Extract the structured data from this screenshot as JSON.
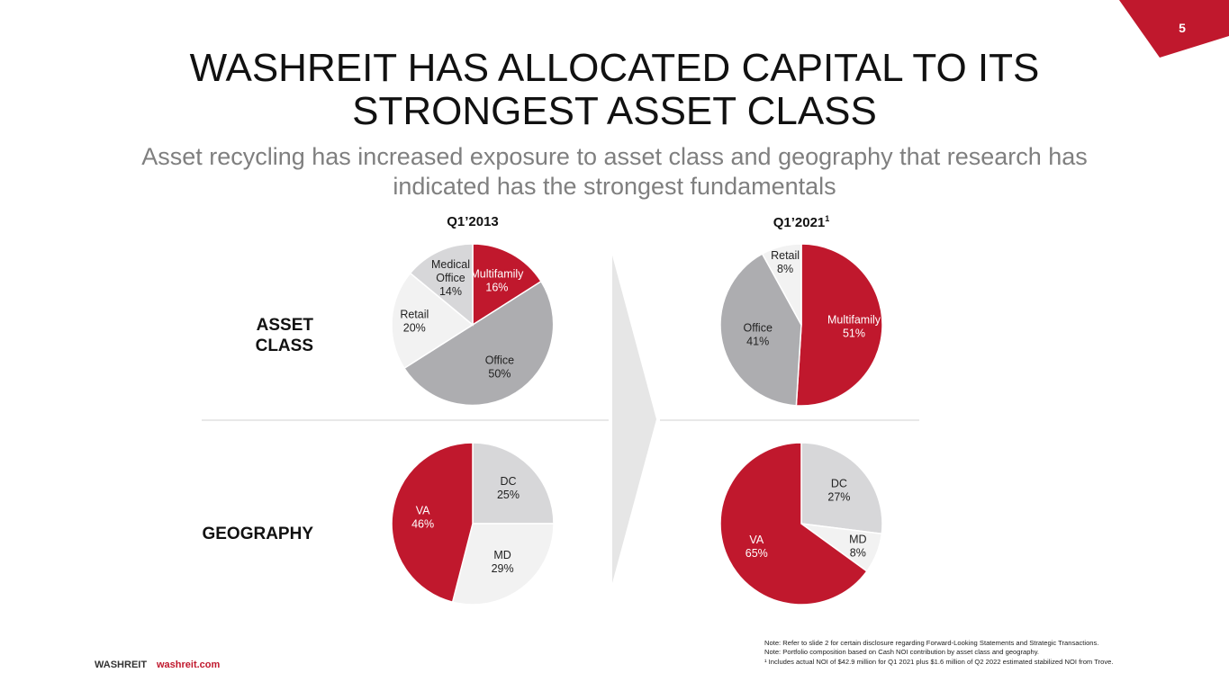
{
  "slide": {
    "page_number": "5",
    "title_line1": "WASHREIT HAS ALLOCATED CAPITAL TO ITS",
    "title_line2": "STRONGEST ASSET CLASS",
    "subtitle_line1": "Asset recycling has increased exposure to asset class and geography that research has",
    "subtitle_line2": "indicated has the strongest fundamentals",
    "row_labels": {
      "asset_line1": "ASSET",
      "asset_line2": "CLASS",
      "geography": "GEOGRAPHY"
    },
    "columns": {
      "left": "Q1’2013",
      "right": "Q1’2021",
      "right_footnote": "1"
    },
    "footer": {
      "brand": "WASHREIT",
      "url": "washreit.com"
    },
    "notes": [
      "Note: Refer to slide 2 for certain disclosure regarding Forward-Looking Statements and Strategic Transactions.",
      "Note: Portfolio composition based on Cash NOI contribution by asset class and geography.",
      "¹ Includes actual NOI of $42.9 million for Q1 2021 plus $1.6 million of Q2 2022 estimated stabilized NOI from Trove."
    ],
    "colors": {
      "brand_red": "#c0182d",
      "office_gray": "#adadb0",
      "light_gray": "#d7d7d9",
      "lightest_gray": "#f2f2f2",
      "arrow_gray": "#e6e6e6"
    }
  },
  "chart_data": [
    {
      "type": "pie",
      "title": "Q1’2013 Asset Class",
      "slices": [
        {
          "label_line1": "Multifamily",
          "label_line2": "",
          "pct_label": "16%",
          "value": 16,
          "color": "#c0182d",
          "text_color": "#ffffff"
        },
        {
          "label_line1": "Office",
          "label_line2": "",
          "pct_label": "50%",
          "value": 50,
          "color": "#adadb0",
          "text_color": "#222222"
        },
        {
          "label_line1": "Retail",
          "label_line2": "",
          "pct_label": "20%",
          "value": 20,
          "color": "#f2f2f2",
          "text_color": "#222222"
        },
        {
          "label_line1": "Medical",
          "label_line2": "Office",
          "pct_label": "14%",
          "value": 14,
          "color": "#d7d7d9",
          "text_color": "#222222"
        }
      ]
    },
    {
      "type": "pie",
      "title": "Q1’2021 Asset Class",
      "slices": [
        {
          "label_line1": "Multifamily",
          "label_line2": "",
          "pct_label": "51%",
          "value": 51,
          "color": "#c0182d",
          "text_color": "#ffffff"
        },
        {
          "label_line1": "Office",
          "label_line2": "",
          "pct_label": "41%",
          "value": 41,
          "color": "#adadb0",
          "text_color": "#222222"
        },
        {
          "label_line1": "Retail",
          "label_line2": "",
          "pct_label": "8%",
          "value": 8,
          "color": "#f2f2f2",
          "text_color": "#222222"
        }
      ]
    },
    {
      "type": "pie",
      "title": "Q1’2013 Geography",
      "slices": [
        {
          "label_line1": "DC",
          "label_line2": "",
          "pct_label": "25%",
          "value": 25,
          "color": "#d7d7d9",
          "text_color": "#222222"
        },
        {
          "label_line1": "MD",
          "label_line2": "",
          "pct_label": "29%",
          "value": 29,
          "color": "#f2f2f2",
          "text_color": "#222222"
        },
        {
          "label_line1": "VA",
          "label_line2": "",
          "pct_label": "46%",
          "value": 46,
          "color": "#c0182d",
          "text_color": "#ffffff"
        }
      ]
    },
    {
      "type": "pie",
      "title": "Q1’2021 Geography",
      "slices": [
        {
          "label_line1": "DC",
          "label_line2": "",
          "pct_label": "27%",
          "value": 27,
          "color": "#d7d7d9",
          "text_color": "#222222"
        },
        {
          "label_line1": "MD",
          "label_line2": "",
          "pct_label": "8%",
          "value": 8,
          "color": "#f2f2f2",
          "text_color": "#222222"
        },
        {
          "label_line1": "VA",
          "label_line2": "",
          "pct_label": "65%",
          "value": 65,
          "color": "#c0182d",
          "text_color": "#ffffff"
        }
      ]
    }
  ]
}
